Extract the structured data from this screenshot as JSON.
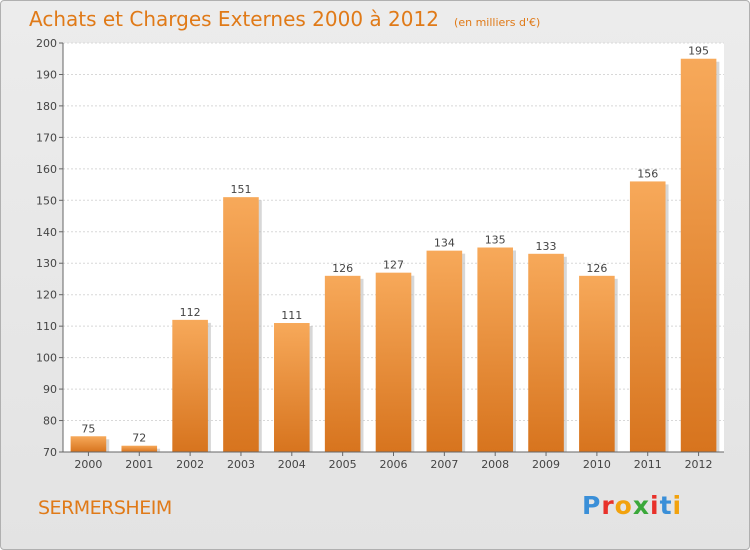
{
  "chart_data": {
    "type": "bar",
    "title": "Achats et Charges Externes 2000 à 2012",
    "subtitle": "(en milliers d'€)",
    "categories": [
      "2000",
      "2001",
      "2002",
      "2003",
      "2004",
      "2005",
      "2006",
      "2007",
      "2008",
      "2009",
      "2010",
      "2011",
      "2012"
    ],
    "values": [
      75,
      72,
      112,
      151,
      111,
      126,
      127,
      134,
      135,
      133,
      126,
      156,
      195
    ],
    "ylim": [
      70,
      200
    ],
    "yticks": [
      70,
      80,
      90,
      100,
      110,
      120,
      130,
      140,
      150,
      160,
      170,
      180,
      190,
      200
    ],
    "grid": true,
    "bar_color_light": "#f7a95a",
    "bar_color_dark": "#d7741e"
  },
  "footer": {
    "commune": "SERMERSHEIM",
    "logo_letters": [
      "P",
      "r",
      "o",
      "x",
      "i",
      "t",
      "i"
    ],
    "logo_colors": [
      "#3a8fd8",
      "#e8312a",
      "#f2a20d",
      "#3aa83a",
      "#e8312a",
      "#3a8fd8",
      "#f2a20d"
    ]
  }
}
